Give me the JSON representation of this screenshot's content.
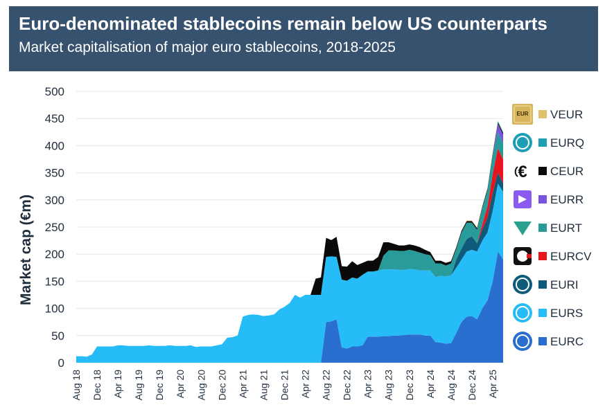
{
  "header": {
    "title": "Euro-denominated stablecoins remain below US counterparts",
    "subtitle": "Market capitalisation of major euro stablecoins, 2018-2025",
    "background": "#37526e"
  },
  "chart_data": {
    "type": "area",
    "stacked": true,
    "title": "Euro-denominated stablecoins remain below US counterparts",
    "subtitle": "Market capitalisation of major euro stablecoins, 2018-2025",
    "xlabel": "",
    "ylabel": "Market cap (€m)",
    "ylim": [
      0,
      500
    ],
    "yticks": [
      0,
      50,
      100,
      150,
      200,
      250,
      300,
      350,
      400,
      450,
      500
    ],
    "grid": true,
    "legend_position": "right",
    "x_tick_labels": [
      "Aug 18",
      "Dec 18",
      "Apr 19",
      "Aug 19",
      "Dec 19",
      "Apr 20",
      "Aug 20",
      "Dec 20",
      "Apr 21",
      "Aug 21",
      "Dec 21",
      "Apr 22",
      "Aug 22",
      "Dec 22",
      "Apr 23",
      "Aug 23",
      "Dec 23",
      "Apr 24",
      "Aug 24",
      "Dec 24",
      "Apr 25"
    ],
    "x": [
      0,
      1,
      2,
      3,
      4,
      5,
      6,
      7,
      8,
      9,
      10,
      11,
      12,
      13,
      14,
      15,
      16,
      17,
      18,
      19,
      20,
      21,
      22,
      23,
      24,
      25,
      26,
      27,
      28,
      29,
      30,
      31,
      32,
      33,
      34,
      35,
      36,
      37,
      38,
      39,
      40,
      41,
      42,
      43,
      44,
      45,
      46,
      47,
      48,
      49,
      50,
      51,
      52,
      53,
      54,
      55,
      56,
      57,
      58,
      59,
      60,
      61,
      62,
      63,
      64,
      65,
      66,
      67,
      68,
      69,
      70,
      71,
      72,
      73,
      74,
      75,
      76,
      77,
      78,
      79,
      80,
      81,
      82
    ],
    "series": [
      {
        "name": "EURC",
        "color": "#2a6fcf",
        "values": [
          0,
          0,
          0,
          0,
          0,
          0,
          0,
          0,
          0,
          0,
          0,
          0,
          0,
          0,
          0,
          0,
          0,
          0,
          0,
          0,
          0,
          0,
          0,
          0,
          0,
          0,
          0,
          0,
          0,
          0,
          0,
          0,
          0,
          0,
          0,
          0,
          0,
          0,
          0,
          0,
          0,
          0,
          0,
          0,
          0,
          0,
          0,
          0,
          75,
          76,
          80,
          28,
          26,
          30,
          30,
          32,
          48,
          48,
          48,
          49,
          49,
          50,
          50,
          51,
          52,
          52,
          52,
          50,
          50,
          38,
          37,
          35,
          36,
          55,
          75,
          85,
          86,
          80,
          100,
          115,
          150,
          205,
          190
        ]
      },
      {
        "name": "EURS",
        "color": "#26bcf8",
        "values": [
          12,
          12,
          11,
          15,
          30,
          30,
          30,
          30,
          32,
          32,
          31,
          31,
          31,
          31,
          32,
          31,
          31,
          31,
          32,
          31,
          31,
          31,
          32,
          29,
          30,
          30,
          30,
          32,
          34,
          46,
          47,
          50,
          85,
          88,
          89,
          88,
          86,
          87,
          89,
          98,
          103,
          110,
          125,
          120,
          125,
          125,
          125,
          125,
          120,
          120,
          115,
          125,
          125,
          127,
          125,
          130,
          120,
          120,
          122,
          123,
          123,
          122,
          121,
          120,
          121,
          120,
          118,
          120,
          120,
          120,
          123,
          124,
          125,
          120,
          115,
          120,
          122,
          125,
          125,
          125,
          130,
          125,
          125
        ]
      },
      {
        "name": "EURI",
        "color": "#0d5a7a",
        "values": [
          0,
          0,
          0,
          0,
          0,
          0,
          0,
          0,
          0,
          0,
          0,
          0,
          0,
          0,
          0,
          0,
          0,
          0,
          0,
          0,
          0,
          0,
          0,
          0,
          0,
          0,
          0,
          0,
          0,
          0,
          0,
          0,
          0,
          0,
          0,
          0,
          0,
          0,
          0,
          0,
          0,
          0,
          0,
          0,
          0,
          0,
          0,
          0,
          0,
          0,
          0,
          0,
          0,
          0,
          0,
          0,
          0,
          0,
          0,
          0,
          0,
          0,
          0,
          0,
          0,
          0,
          0,
          0,
          0,
          0,
          0,
          0,
          0,
          15,
          20,
          23,
          25,
          15,
          20,
          28,
          33,
          20,
          15
        ]
      },
      {
        "name": "EURCV",
        "color": "#e8141e",
        "values": [
          0,
          0,
          0,
          0,
          0,
          0,
          0,
          0,
          0,
          0,
          0,
          0,
          0,
          0,
          0,
          0,
          0,
          0,
          0,
          0,
          0,
          0,
          0,
          0,
          0,
          0,
          0,
          0,
          0,
          0,
          0,
          0,
          0,
          0,
          0,
          0,
          0,
          0,
          0,
          0,
          0,
          0,
          0,
          0,
          0,
          0,
          0,
          0,
          0,
          0,
          0,
          0,
          0,
          0,
          0,
          0,
          0,
          0,
          0,
          0,
          0,
          0,
          0,
          0,
          0,
          0,
          0,
          0,
          0,
          0,
          0,
          0,
          0,
          0,
          0,
          0,
          0,
          0,
          10,
          20,
          35,
          45,
          45
        ]
      },
      {
        "name": "EURT",
        "color": "#2a9b9b",
        "values": [
          0,
          0,
          0,
          0,
          0,
          0,
          0,
          0,
          0,
          0,
          0,
          0,
          0,
          0,
          0,
          0,
          0,
          0,
          0,
          0,
          0,
          0,
          0,
          0,
          0,
          0,
          0,
          0,
          0,
          0,
          0,
          0,
          0,
          0,
          0,
          0,
          0,
          0,
          0,
          0,
          0,
          0,
          0,
          0,
          0,
          0,
          0,
          0,
          0,
          0,
          0,
          0,
          0,
          0,
          0,
          0,
          0,
          0,
          0,
          25,
          35,
          35,
          35,
          35,
          35,
          34,
          33,
          30,
          28,
          25,
          23,
          20,
          22,
          20,
          30,
          30,
          25,
          25,
          30,
          30,
          35,
          30,
          30
        ]
      },
      {
        "name": "EURR",
        "color": "#7b52e0",
        "values": [
          0,
          0,
          0,
          0,
          0,
          0,
          0,
          0,
          0,
          0,
          0,
          0,
          0,
          0,
          0,
          0,
          0,
          0,
          0,
          0,
          0,
          0,
          0,
          0,
          0,
          0,
          0,
          0,
          0,
          0,
          0,
          0,
          0,
          0,
          0,
          0,
          0,
          0,
          0,
          0,
          0,
          0,
          0,
          0,
          0,
          0,
          0,
          0,
          0,
          0,
          0,
          0,
          0,
          0,
          0,
          0,
          0,
          0,
          0,
          0,
          0,
          0,
          0,
          0,
          0,
          0,
          0,
          0,
          0,
          0,
          0,
          0,
          0,
          0,
          0,
          0,
          0,
          0,
          0,
          0,
          0,
          15,
          15
        ]
      },
      {
        "name": "CEUR",
        "color": "#0a0a0a",
        "values": [
          0,
          0,
          0,
          0,
          0,
          0,
          0,
          0,
          0,
          0,
          0,
          0,
          0,
          0,
          0,
          0,
          0,
          0,
          0,
          0,
          0,
          0,
          0,
          0,
          0,
          0,
          0,
          0,
          0,
          0,
          0,
          0,
          0,
          0,
          0,
          0,
          0,
          0,
          0,
          0,
          0,
          0,
          0,
          0,
          0,
          0,
          30,
          32,
          35,
          30,
          37,
          25,
          26,
          30,
          25,
          22,
          20,
          20,
          25,
          25,
          15,
          12,
          10,
          10,
          10,
          10,
          10,
          8,
          6,
          5,
          5,
          5,
          4,
          3,
          3,
          3,
          3,
          3,
          3,
          3,
          3,
          3,
          3
        ]
      },
      {
        "name": "EURQ",
        "color": "#1c9fb5",
        "values": [
          0,
          0,
          0,
          0,
          0,
          0,
          0,
          0,
          0,
          0,
          0,
          0,
          0,
          0,
          0,
          0,
          0,
          0,
          0,
          0,
          0,
          0,
          0,
          0,
          0,
          0,
          0,
          0,
          0,
          0,
          0,
          0,
          0,
          0,
          0,
          0,
          0,
          0,
          0,
          0,
          0,
          0,
          0,
          0,
          0,
          0,
          0,
          0,
          0,
          0,
          0,
          0,
          0,
          0,
          0,
          0,
          0,
          0,
          0,
          0,
          0,
          0,
          0,
          0,
          0,
          0,
          0,
          0,
          0,
          0,
          0,
          0,
          0,
          0,
          0,
          0,
          0,
          0,
          0,
          0,
          0,
          2,
          2
        ]
      },
      {
        "name": "VEUR",
        "color": "#e0c06a",
        "values": [
          0,
          0,
          0,
          0,
          0,
          0,
          0,
          0,
          0,
          0,
          0,
          0,
          0,
          0,
          0,
          0,
          0,
          0,
          0,
          0,
          0,
          0,
          0,
          0,
          0,
          0,
          0,
          0,
          0,
          0,
          0,
          0,
          0,
          0,
          0,
          0,
          0,
          0,
          0,
          0,
          0,
          0,
          0,
          0,
          0,
          0,
          0,
          0,
          0,
          0,
          0,
          0,
          0,
          0,
          0,
          0,
          0,
          0,
          0,
          0,
          0,
          0,
          0,
          0,
          0,
          0,
          0,
          0,
          0,
          0,
          0,
          0,
          0,
          0,
          0,
          1,
          1,
          1,
          1,
          1,
          1,
          1,
          1
        ]
      }
    ],
    "legend": [
      {
        "name": "VEUR",
        "color": "#e0c06a",
        "icon": "veur-token-icon"
      },
      {
        "name": "EURQ",
        "color": "#1c9fb5",
        "icon": "eurq-token-icon"
      },
      {
        "name": "CEUR",
        "color": "#0a0a0a",
        "icon": "ceur-token-icon"
      },
      {
        "name": "EURR",
        "color": "#7b52e0",
        "icon": "eurr-token-icon"
      },
      {
        "name": "EURT",
        "color": "#2a9b9b",
        "icon": "eurt-token-icon"
      },
      {
        "name": "EURCV",
        "color": "#e8141e",
        "icon": "eurcv-token-icon"
      },
      {
        "name": "EURI",
        "color": "#0d5a7a",
        "icon": "euri-token-icon"
      },
      {
        "name": "EURS",
        "color": "#26bcf8",
        "icon": "eurs-token-icon"
      },
      {
        "name": "EURC",
        "color": "#2a6fcf",
        "icon": "eurc-token-icon"
      }
    ]
  }
}
